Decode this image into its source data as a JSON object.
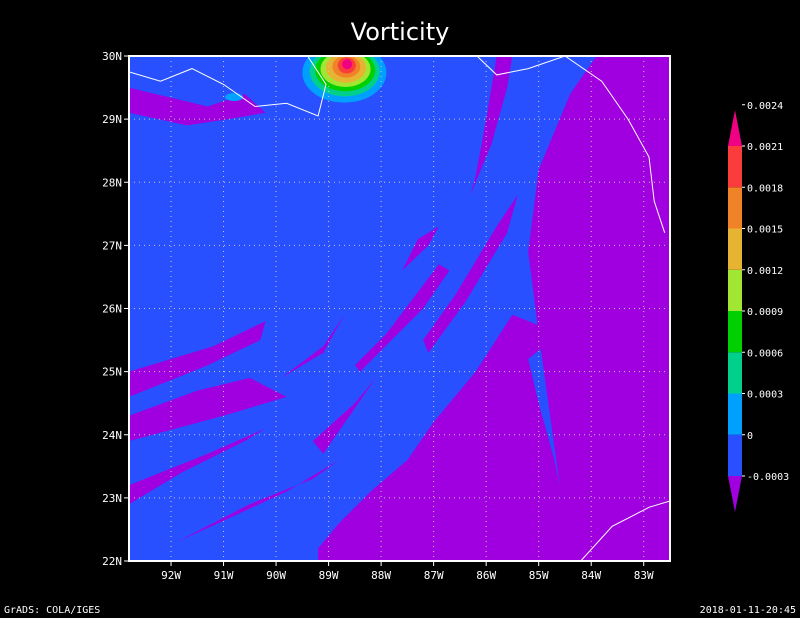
{
  "title": "Vorticity",
  "footer": {
    "left": "GrADS: COLA/IGES",
    "right": "2018-01-11-20:45"
  },
  "chart_data": {
    "type": "heatmap",
    "title": "Vorticity",
    "x_axis": {
      "range": [
        -92.8,
        -82.5
      ],
      "ticks": [
        -92,
        -91,
        -90,
        -89,
        -88,
        -87,
        -86,
        -85,
        -84,
        -83
      ],
      "tick_labels": [
        "92W",
        "91W",
        "90W",
        "89W",
        "88W",
        "87W",
        "86W",
        "85W",
        "84W",
        "83W"
      ]
    },
    "y_axis": {
      "range": [
        22,
        30
      ],
      "ticks": [
        22,
        23,
        24,
        25,
        26,
        27,
        28,
        29,
        30
      ],
      "tick_labels": [
        "22N",
        "23N",
        "24N",
        "25N",
        "26N",
        "27N",
        "28N",
        "29N",
        "30N"
      ]
    },
    "grid": true,
    "colorbar": {
      "placement": "right",
      "labels": [
        "-0.0003",
        "0",
        "0.0003",
        "0.0006",
        "0.0009",
        "0.0012",
        "0.0015",
        "0.0018",
        "0.0021",
        "0.0024"
      ],
      "colors": [
        "#a000e0",
        "#2850ff",
        "#00a0ff",
        "#00d08c",
        "#00d000",
        "#a0e632",
        "#e6b432",
        "#f08228",
        "#fa3c3c",
        "#f00082"
      ]
    },
    "background_level": "0",
    "max_feature": {
      "lon": -88.7,
      "lat": 29.8,
      "peak_level": "0.0024"
    }
  }
}
